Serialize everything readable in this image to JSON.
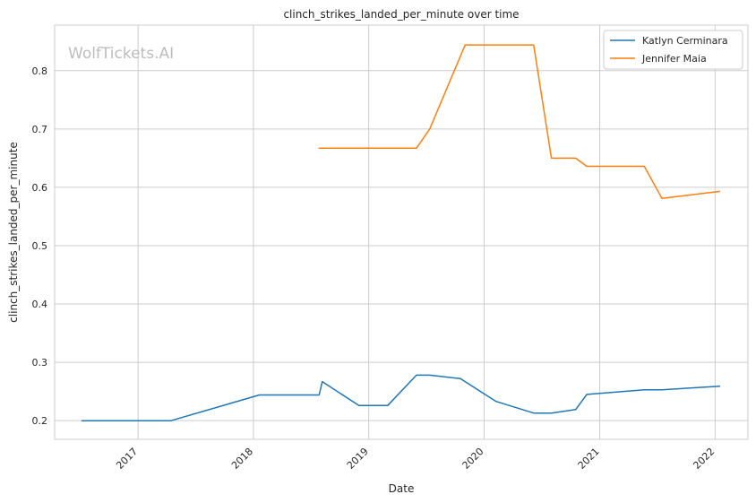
{
  "chart_data": {
    "type": "line",
    "title": "clinch_strikes_landed_per_minute over time",
    "xlabel": "Date",
    "ylabel": "clinch_strikes_landed_per_minute",
    "watermark": "WolfTickets.AI",
    "xlim": [
      "2016-04-12",
      "2022-04-15"
    ],
    "ylim": [
      0.168,
      0.878
    ],
    "x_ticks": [
      "2017-01-01",
      "2018-01-01",
      "2019-01-01",
      "2020-01-01",
      "2021-01-01",
      "2022-01-01"
    ],
    "x_tick_labels": [
      "2017",
      "2018",
      "2019",
      "2020",
      "2021",
      "2022"
    ],
    "y_ticks": [
      0.2,
      0.3,
      0.4,
      0.5,
      0.6,
      0.7,
      0.8
    ],
    "y_tick_labels": [
      "0.2",
      "0.3",
      "0.4",
      "0.5",
      "0.6",
      "0.7",
      "0.8"
    ],
    "grid": true,
    "legend_position": "top-right",
    "series": [
      {
        "name": "Katlyn Cerminara",
        "color": "#1f77b4",
        "x": [
          "2016-07-08",
          "2017-04-15",
          "2018-01-20",
          "2018-07-28",
          "2018-08-07",
          "2018-12-01",
          "2019-03-02",
          "2019-06-01",
          "2019-07-13",
          "2019-10-18",
          "2020-02-08",
          "2020-06-06",
          "2020-08-01",
          "2020-10-17",
          "2020-11-21",
          "2021-05-22",
          "2021-07-17",
          "2022-01-15"
        ],
        "y": [
          0.2,
          0.2,
          0.244,
          0.244,
          0.267,
          0.226,
          0.226,
          0.278,
          0.278,
          0.272,
          0.233,
          0.213,
          0.213,
          0.219,
          0.245,
          0.253,
          0.253,
          0.259
        ]
      },
      {
        "name": "Jennifer Maia",
        "color": "#ff7f0e",
        "x": [
          "2018-07-28",
          "2019-06-01",
          "2019-07-13",
          "2019-11-02",
          "2020-06-06",
          "2020-08-01",
          "2020-10-17",
          "2020-11-21",
          "2021-05-22",
          "2021-07-17",
          "2022-01-15"
        ],
        "y": [
          0.667,
          0.667,
          0.7,
          0.844,
          0.844,
          0.65,
          0.65,
          0.636,
          0.636,
          0.581,
          0.593
        ]
      }
    ]
  }
}
